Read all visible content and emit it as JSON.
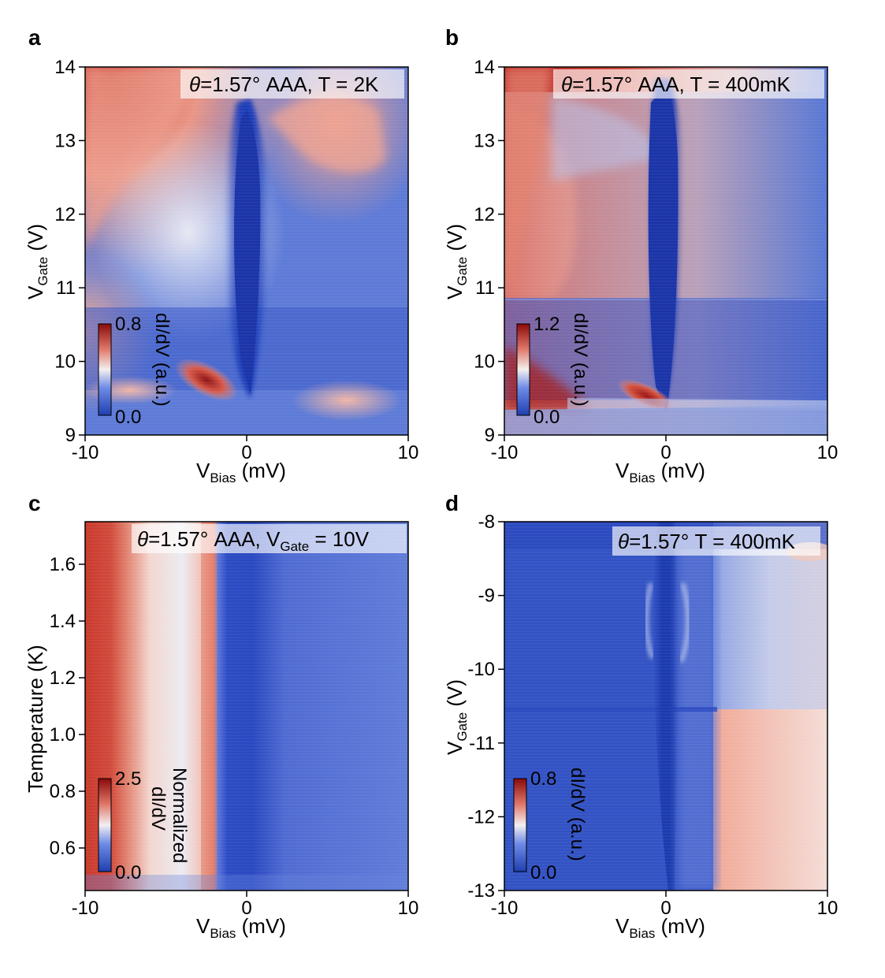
{
  "colors": {
    "low": "#1f3fb0",
    "mid": "#6e8be6",
    "neutral": "#f2eeee",
    "high": "#e07a6c",
    "max": "#8b0a0a"
  },
  "chart_data": [
    {
      "panel": "a",
      "type": "heatmap",
      "title_prefix": "θ",
      "title_rest": "=1.57° AAA, T = 2K",
      "xlabel_main": "V",
      "xlabel_sub": "Bias",
      "xlabel_unit": " (mV)",
      "ylabel_main": "V",
      "ylabel_sub": "Gate",
      "ylabel_unit": " (V)",
      "xlim": [
        -10,
        10
      ],
      "ylim": [
        9,
        14
      ],
      "xticks": [
        "-10",
        "0",
        "10"
      ],
      "yticks": [
        "9",
        "10",
        "11",
        "12",
        "13",
        "14"
      ],
      "colorbar": {
        "min": "0.0",
        "max": "0.8",
        "label": "dI/dV (a.u.)"
      }
    },
    {
      "panel": "b",
      "type": "heatmap",
      "title_prefix": "θ",
      "title_rest": "=1.57° AAA, T = 400mK",
      "xlabel_main": "V",
      "xlabel_sub": "Bias",
      "xlabel_unit": " (mV)",
      "ylabel_main": "V",
      "ylabel_sub": "Gate",
      "ylabel_unit": " (V)",
      "xlim": [
        -10,
        10
      ],
      "ylim": [
        9,
        14
      ],
      "xticks": [
        "-10",
        "0",
        "10"
      ],
      "yticks": [
        "9",
        "10",
        "11",
        "12",
        "13",
        "14"
      ],
      "colorbar": {
        "min": "0.0",
        "max": "1.2",
        "label": "dI/dV (a.u.)"
      }
    },
    {
      "panel": "c",
      "type": "heatmap",
      "title_prefix": "θ",
      "title_rest": "=1.57° AAA, V",
      "title_sub": "Gate",
      "title_end": " = 10V",
      "xlabel_main": "V",
      "xlabel_sub": "Bias",
      "xlabel_unit": " (mV)",
      "ylabel": "Temperature (K)",
      "xlim": [
        -10,
        10
      ],
      "ylim": [
        0.45,
        1.75
      ],
      "xticks": [
        "-10",
        "0",
        "10"
      ],
      "yticks": [
        "0.6",
        "0.8",
        "1.0",
        "1.2",
        "1.4",
        "1.6"
      ],
      "colorbar": {
        "min": "0.0",
        "max": "2.5",
        "label_line1": "Normalized",
        "label_line2": "dI/dV"
      }
    },
    {
      "panel": "d",
      "type": "heatmap",
      "title_prefix": "θ",
      "title_rest": "=1.57° T = 400mK",
      "xlabel_main": "V",
      "xlabel_sub": "Bias",
      "xlabel_unit": " (mV)",
      "ylabel_main": "V",
      "ylabel_sub": "Gate",
      "ylabel_unit": " (V)",
      "xlim": [
        -10,
        10
      ],
      "ylim": [
        -13,
        -8
      ],
      "xticks": [
        "-10",
        "0",
        "10"
      ],
      "yticks": [
        "-13",
        "-12",
        "-11",
        "-10",
        "-9",
        "-8"
      ],
      "colorbar": {
        "min": "0.0",
        "max": "0.8",
        "label": "dI/dV (a.u.)"
      }
    }
  ]
}
